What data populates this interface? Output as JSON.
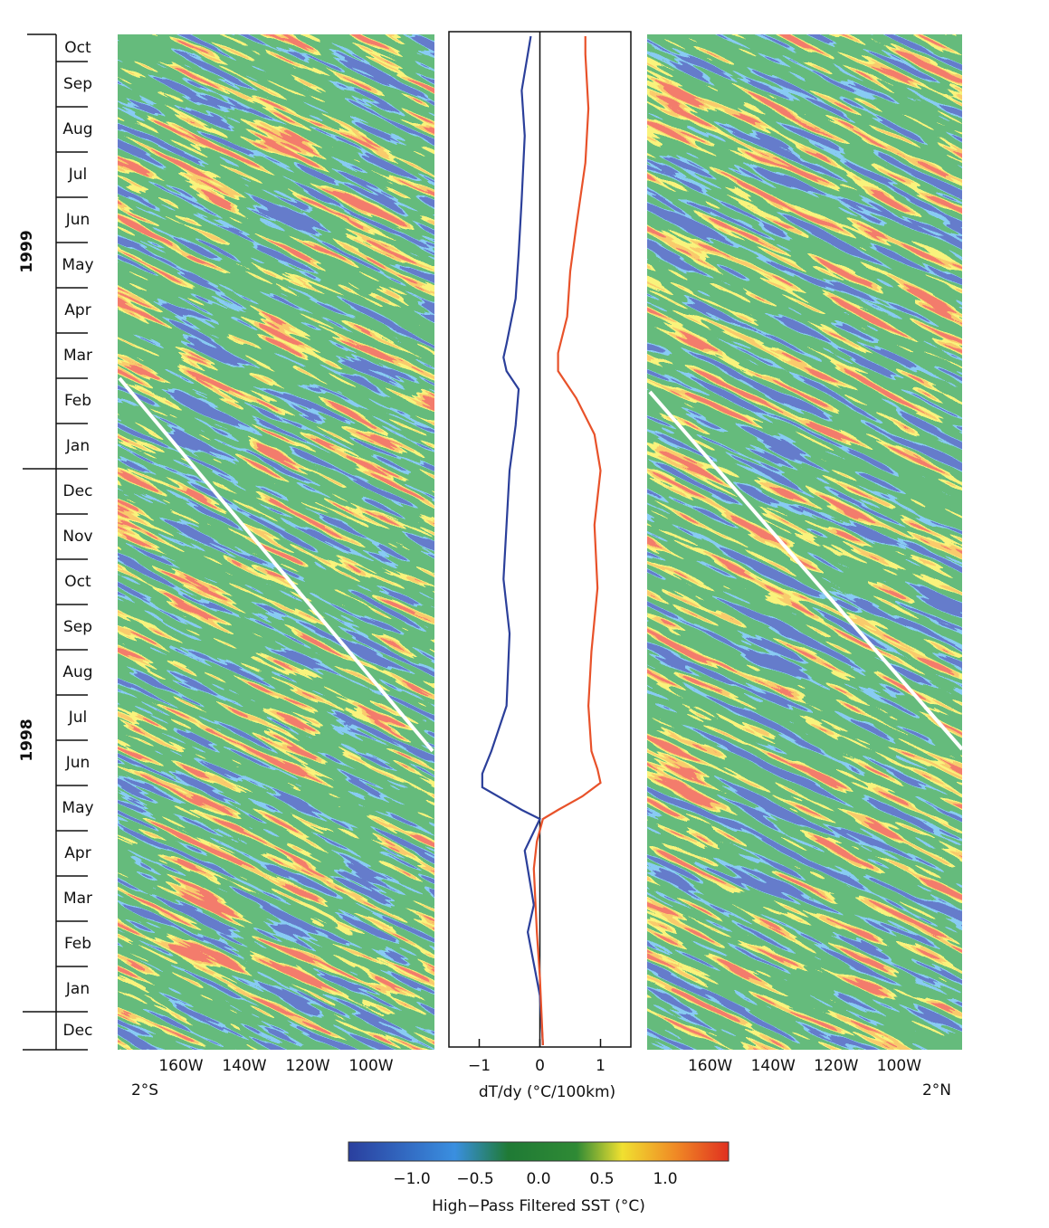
{
  "chart_data": [
    {
      "type": "time-axis",
      "categories": [
        "Dec",
        "Jan",
        "Feb",
        "Mar",
        "Apr",
        "May",
        "Jun",
        "Jul",
        "Aug",
        "Sep",
        "Oct",
        "Nov",
        "Dec",
        "Jan",
        "Feb",
        "Mar",
        "Apr",
        "May",
        "Jun",
        "Jul",
        "Aug",
        "Sep",
        "Oct"
      ],
      "years": [
        "1998",
        "1999"
      ],
      "ylim": [
        -0.84,
        21.6
      ]
    },
    {
      "type": "hovmoller",
      "panel_label": "2°S",
      "xlim": [
        -180,
        -80
      ],
      "xticks": [
        {
          "value": -160,
          "label": "160W"
        },
        {
          "value": -140,
          "label": "140W"
        },
        {
          "value": -120,
          "label": "120W"
        },
        {
          "value": -100,
          "label": "100W"
        }
      ]
    },
    {
      "type": "line",
      "xlabel": "dT/dy (°C/100km)",
      "xlim": [
        -1.5,
        1.5
      ],
      "xticks": [
        {
          "value": -1,
          "label": "−1"
        },
        0,
        1
      ],
      "series": [
        {
          "color": "#2b3f9a",
          "time": [
            -0.74,
            0.36,
            1.76,
            2.36,
            3.56,
            4.26,
            4.46,
            4.96,
            5.26,
            5.76,
            6.76,
            8.36,
            9.56,
            10.76,
            11.96,
            12.96,
            13.76,
            14.16,
            14.46,
            14.76,
            15.76,
            16.76,
            17.96,
            19.36,
            20.36,
            21.56
          ],
          "values": [
            0.05,
            0,
            -0.2,
            -0.1,
            -0.25,
            0,
            -0.3,
            -0.95,
            -0.95,
            -0.8,
            -0.55,
            -0.5,
            -0.6,
            -0.55,
            -0.5,
            -0.4,
            -0.35,
            -0.55,
            -0.6,
            -0.55,
            -0.4,
            -0.35,
            -0.3,
            -0.25,
            -0.3,
            -0.15
          ]
        },
        {
          "color": "#e8522a",
          "time": [
            -0.74,
            0.76,
            1.76,
            3.16,
            3.76,
            4.26,
            4.46,
            4.76,
            5.06,
            5.36,
            5.76,
            6.76,
            7.96,
            9.36,
            10.76,
            11.96,
            12.76,
            13.56,
            14.16,
            14.56,
            15.36,
            16.36,
            17.36,
            18.76,
            19.96,
            21.16,
            21.56
          ],
          "values": [
            0.05,
            0,
            -0.05,
            -0.1,
            -0.05,
            0.05,
            0.3,
            0.7,
            1.0,
            0.95,
            0.85,
            0.8,
            0.85,
            0.95,
            0.9,
            1.0,
            0.9,
            0.6,
            0.3,
            0.3,
            0.45,
            0.5,
            0.6,
            0.75,
            0.8,
            0.75,
            0.75
          ]
        }
      ]
    },
    {
      "type": "hovmoller",
      "panel_label": "2°N",
      "xlim": [
        -180,
        -80
      ],
      "xticks": [
        {
          "value": -160,
          "label": "160W"
        },
        {
          "value": -140,
          "label": "140W"
        },
        {
          "value": -120,
          "label": "120W"
        },
        {
          "value": -100,
          "label": "100W"
        }
      ]
    },
    {
      "type": "colorbar",
      "label": "High−Pass Filtered SST (°C)",
      "xlim": [
        -1.5,
        1.5
      ],
      "xticks": [
        {
          "value": -1,
          "label": "−1.0"
        },
        {
          "value": -0.5,
          "label": "−0.5"
        },
        {
          "value": 0,
          "label": "0.0"
        },
        0.5,
        {
          "value": 1,
          "label": "1.0"
        }
      ]
    }
  ]
}
